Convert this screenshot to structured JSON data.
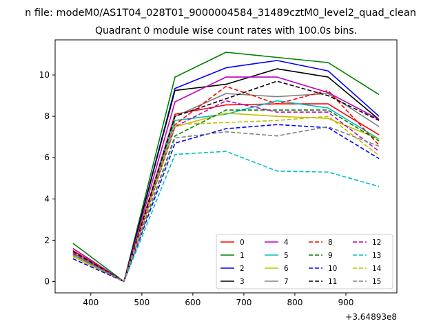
{
  "figure": {
    "suptitle": "n file: modeM0/AS1T04_028T01_9000004584_31489cztM0_level2_quad_clean",
    "offset_label": "+3.64893e8"
  },
  "chart_data": {
    "type": "line",
    "title": "Quadrant 0 module wise count rates with 100.0s bins.",
    "xlabel": "",
    "ylabel": "",
    "x_offset": 364893000,
    "x": [
      365,
      465,
      565,
      665,
      765,
      865,
      965
    ],
    "xlim": [
      330,
      1000
    ],
    "ylim": [
      -0.55,
      11.7
    ],
    "xticks": [
      400,
      500,
      600,
      700,
      800,
      900
    ],
    "yticks": [
      0,
      2,
      4,
      6,
      8,
      10
    ],
    "grid": false,
    "legend": {
      "placement": "lower-right",
      "columns": 4
    },
    "series": [
      {
        "name": "0",
        "color": "#ff0000",
        "dash": "solid",
        "values": [
          1.5,
          0.0,
          8.1,
          8.55,
          8.6,
          8.6,
          7.1
        ]
      },
      {
        "name": "1",
        "color": "#008000",
        "dash": "solid",
        "values": [
          1.85,
          0.0,
          9.9,
          11.1,
          10.85,
          10.6,
          9.05
        ]
      },
      {
        "name": "2",
        "color": "#0000ff",
        "dash": "solid",
        "values": [
          1.3,
          0.0,
          9.35,
          10.35,
          10.7,
          10.2,
          8.0
        ]
      },
      {
        "name": "3",
        "color": "#000000",
        "dash": "solid",
        "values": [
          1.4,
          0.0,
          9.25,
          9.55,
          10.3,
          9.9,
          7.85
        ]
      },
      {
        "name": "4",
        "color": "#bf00bf",
        "dash": "solid",
        "values": [
          1.6,
          0.0,
          8.7,
          9.9,
          9.9,
          9.15,
          7.85
        ]
      },
      {
        "name": "5",
        "color": "#00bfbf",
        "dash": "solid",
        "values": [
          1.3,
          0.0,
          7.8,
          8.1,
          8.75,
          8.4,
          6.9
        ]
      },
      {
        "name": "6",
        "color": "#bfbf00",
        "dash": "solid",
        "values": [
          1.2,
          0.0,
          7.5,
          8.15,
          8.0,
          7.9,
          6.9
        ]
      },
      {
        "name": "7",
        "color": "#808080",
        "dash": "solid",
        "values": [
          1.4,
          0.0,
          8.0,
          9.1,
          8.95,
          9.1,
          7.5
        ]
      },
      {
        "name": "8",
        "color": "#ff0000",
        "dash": "dashed",
        "values": [
          1.5,
          0.0,
          7.6,
          9.45,
          8.6,
          9.25,
          6.6
        ]
      },
      {
        "name": "9",
        "color": "#008000",
        "dash": "dashed",
        "values": [
          1.3,
          0.0,
          7.05,
          8.3,
          8.3,
          8.3,
          6.8
        ]
      },
      {
        "name": "10",
        "color": "#0000ff",
        "dash": "dashed",
        "values": [
          1.1,
          0.0,
          6.7,
          7.4,
          7.6,
          7.45,
          5.95
        ]
      },
      {
        "name": "11",
        "color": "#000000",
        "dash": "dashed",
        "values": [
          1.45,
          0.0,
          8.0,
          8.85,
          9.7,
          9.0,
          7.8
        ]
      },
      {
        "name": "12",
        "color": "#bf00bf",
        "dash": "dashed",
        "values": [
          1.35,
          0.0,
          7.5,
          8.75,
          8.2,
          8.2,
          6.3
        ]
      },
      {
        "name": "13",
        "color": "#00bfbf",
        "dash": "dashed",
        "values": [
          1.25,
          0.0,
          6.15,
          6.3,
          5.35,
          5.3,
          4.6
        ]
      },
      {
        "name": "14",
        "color": "#bfbf00",
        "dash": "dashed",
        "values": [
          1.25,
          0.0,
          7.6,
          7.7,
          7.8,
          8.0,
          6.1
        ]
      },
      {
        "name": "15",
        "color": "#808080",
        "dash": "dashed",
        "values": [
          1.3,
          0.0,
          6.95,
          7.25,
          7.05,
          7.5,
          6.55
        ]
      }
    ]
  }
}
